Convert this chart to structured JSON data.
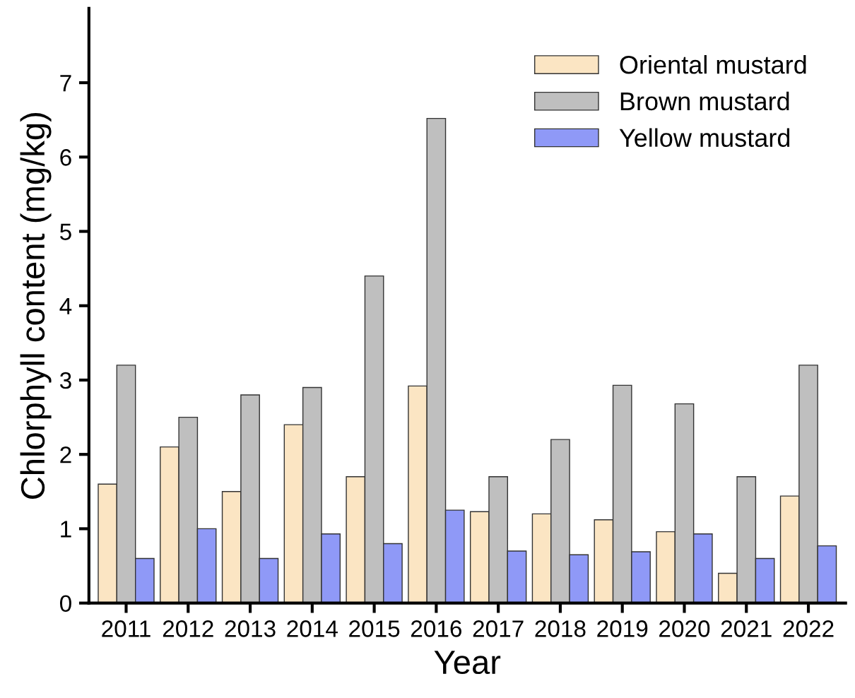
{
  "chart_data": {
    "type": "bar",
    "xlabel": "Year",
    "ylabel": "Chlorphyll content (mg/kg)",
    "categories": [
      "2011",
      "2012",
      "2013",
      "2014",
      "2015",
      "2016",
      "2017",
      "2018",
      "2019",
      "2020",
      "2021",
      "2022"
    ],
    "series": [
      {
        "name": "Oriental mustard",
        "color": "#fbe5c3",
        "values": [
          1.6,
          2.1,
          1.5,
          2.4,
          1.7,
          2.92,
          1.23,
          1.2,
          1.12,
          0.96,
          0.4,
          1.44
        ]
      },
      {
        "name": "Brown mustard",
        "color": "#bfbfbf",
        "values": [
          3.2,
          2.5,
          2.8,
          2.9,
          4.4,
          6.52,
          1.7,
          2.2,
          2.93,
          2.68,
          1.7,
          3.2
        ]
      },
      {
        "name": "Yellow mustard",
        "color": "#8f99f7",
        "values": [
          0.6,
          1.0,
          0.6,
          0.93,
          0.8,
          1.25,
          0.7,
          0.65,
          0.69,
          0.93,
          0.6,
          0.77
        ]
      }
    ],
    "ylim": [
      0,
      8
    ],
    "yticks": [
      0,
      1,
      2,
      3,
      4,
      5,
      6,
      7
    ],
    "grid": false,
    "legend": "top right"
  }
}
